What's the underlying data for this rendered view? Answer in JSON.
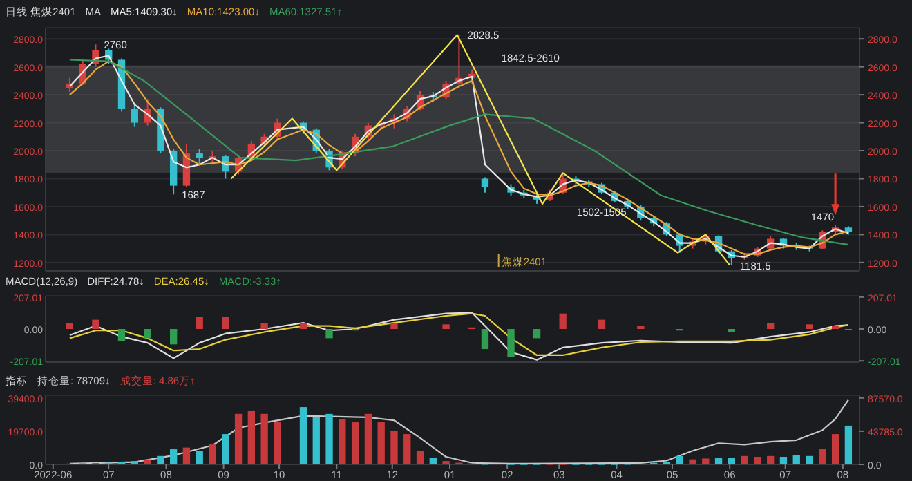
{
  "chart_data": [
    {
      "type": "candlestick",
      "title": "日线  焦煤2401",
      "legend_title": "MA",
      "legend": "top left",
      "grid": "y",
      "tick_labels": "y",
      "xlim": [
        "2022-05-28",
        "2023-08-10"
      ],
      "ylim": [
        1140,
        2880
      ],
      "yticks": [
        {
          "value": 1200,
          "label": "1200.0"
        },
        {
          "value": 1400,
          "label": "1400.0"
        },
        {
          "value": 1600,
          "label": "1600.0"
        },
        {
          "value": 1800,
          "label": "1800.0"
        },
        {
          "value": 2000,
          "label": "2000.0"
        },
        {
          "value": 2200,
          "label": "2200.0"
        },
        {
          "value": 2400,
          "label": "2400.0"
        },
        {
          "value": 2600,
          "label": "2600.0"
        },
        {
          "value": 2800,
          "label": "2800.0"
        }
      ],
      "y2lim": [
        1140,
        2880
      ],
      "y2ticks": [
        {
          "value": 1200,
          "label": "1200.0"
        },
        {
          "value": 1400,
          "label": "1400.0"
        },
        {
          "value": 1600,
          "label": "1600.0"
        },
        {
          "value": 1800,
          "label": "1800.0"
        },
        {
          "value": 2000,
          "label": "2000.0"
        },
        {
          "value": 2200,
          "label": "2200.0"
        },
        {
          "value": 2400,
          "label": "2400.0"
        },
        {
          "value": 2600,
          "label": "2600.0"
        },
        {
          "value": 2800,
          "label": "2800.0"
        }
      ],
      "x": [
        "2022-06-10",
        "2022-06-17",
        "2022-06-24",
        "2022-07-01",
        "2022-07-08",
        "2022-07-15",
        "2022-07-22",
        "2022-07-29",
        "2022-08-05",
        "2022-08-12",
        "2022-08-19",
        "2022-08-26",
        "2022-09-02",
        "2022-09-09",
        "2022-09-16",
        "2022-09-23",
        "2022-09-30",
        "2022-10-14",
        "2022-10-21",
        "2022-10-28",
        "2022-11-04",
        "2022-11-11",
        "2022-11-18",
        "2022-11-25",
        "2022-12-02",
        "2022-12-09",
        "2022-12-16",
        "2022-12-23",
        "2022-12-30",
        "2023-01-06",
        "2023-01-13",
        "2023-01-20",
        "2023-02-03",
        "2023-02-10",
        "2023-02-17",
        "2023-02-24",
        "2023-03-03",
        "2023-03-10",
        "2023-03-17",
        "2023-03-24",
        "2023-03-31",
        "2023-04-07",
        "2023-04-14",
        "2023-04-21",
        "2023-04-28",
        "2023-05-05",
        "2023-05-12",
        "2023-05-19",
        "2023-05-26",
        "2023-06-02",
        "2023-06-09",
        "2023-06-16",
        "2023-06-23",
        "2023-06-30",
        "2023-07-07",
        "2023-07-14",
        "2023-07-21",
        "2023-07-28",
        "2023-08-04"
      ],
      "ohlc": [
        [
          2450,
          2520,
          2420,
          2480
        ],
        [
          2480,
          2650,
          2470,
          2620
        ],
        [
          2620,
          2760,
          2600,
          2720
        ],
        [
          2720,
          2730,
          2620,
          2650
        ],
        [
          2650,
          2660,
          2280,
          2300
        ],
        [
          2300,
          2340,
          2170,
          2200
        ],
        [
          2200,
          2370,
          2180,
          2300
        ],
        [
          2300,
          2310,
          1980,
          2000
        ],
        [
          2000,
          2010,
          1687,
          1750
        ],
        [
          1750,
          2050,
          1740,
          1980
        ],
        [
          1980,
          2010,
          1900,
          1950
        ],
        [
          1950,
          2000,
          1900,
          1960
        ],
        [
          1960,
          1970,
          1800,
          1850
        ],
        [
          1850,
          1970,
          1830,
          1950
        ],
        [
          1950,
          2070,
          1930,
          2050
        ],
        [
          2050,
          2120,
          2030,
          2100
        ],
        [
          2100,
          2230,
          2080,
          2200
        ],
        [
          2200,
          2210,
          2120,
          2150
        ],
        [
          2150,
          2160,
          1980,
          2000
        ],
        [
          2000,
          2010,
          1860,
          1880
        ],
        [
          1880,
          2000,
          1870,
          1980
        ],
        [
          1980,
          2120,
          1960,
          2100
        ],
        [
          2100,
          2200,
          2080,
          2180
        ],
        [
          2180,
          2230,
          2150,
          2200
        ],
        [
          2200,
          2260,
          2160,
          2230
        ],
        [
          2230,
          2320,
          2210,
          2300
        ],
        [
          2300,
          2430,
          2290,
          2400
        ],
        [
          2400,
          2420,
          2350,
          2380
        ],
        [
          2380,
          2500,
          2370,
          2480
        ],
        [
          2480,
          2828.5,
          2450,
          2520
        ],
        [
          2520,
          2580,
          2480,
          2550
        ],
        [
          1800,
          1810,
          1700,
          1740
        ],
        [
          1740,
          1760,
          1680,
          1700
        ],
        [
          1700,
          1720,
          1660,
          1680
        ],
        [
          1680,
          1700,
          1620,
          1650
        ],
        [
          1650,
          1720,
          1640,
          1700
        ],
        [
          1700,
          1840,
          1690,
          1800
        ],
        [
          1800,
          1820,
          1760,
          1780
        ],
        [
          1780,
          1790,
          1740,
          1760
        ],
        [
          1760,
          1770,
          1690,
          1700
        ],
        [
          1700,
          1710,
          1630,
          1640
        ],
        [
          1640,
          1650,
          1580,
          1600
        ],
        [
          1600,
          1610,
          1500,
          1520
        ],
        [
          1520,
          1530,
          1460,
          1480
        ],
        [
          1480,
          1490,
          1390,
          1400
        ],
        [
          1400,
          1410,
          1270,
          1320
        ],
        [
          1320,
          1370,
          1300,
          1350
        ],
        [
          1350,
          1400,
          1330,
          1390
        ],
        [
          1390,
          1395,
          1270,
          1280
        ],
        [
          1280,
          1290,
          1181.5,
          1230
        ],
        [
          1230,
          1270,
          1220,
          1250
        ],
        [
          1250,
          1310,
          1240,
          1300
        ],
        [
          1300,
          1390,
          1290,
          1370
        ],
        [
          1370,
          1375,
          1300,
          1320
        ],
        [
          1320,
          1340,
          1290,
          1310
        ],
        [
          1310,
          1320,
          1280,
          1300
        ],
        [
          1300,
          1430,
          1295,
          1420
        ],
        [
          1420,
          1470,
          1400,
          1450
        ],
        [
          1450,
          1460,
          1400,
          1420
        ]
      ],
      "series": [
        {
          "name": "MA5:1409.30↓",
          "type": "line",
          "color": "#e8e8e8",
          "values": [
            2460,
            2560,
            2660,
            2680,
            2500,
            2330,
            2260,
            2180,
            1920,
            1880,
            1900,
            1950,
            1900,
            1900,
            1980,
            2060,
            2150,
            2170,
            2080,
            1950,
            1940,
            2030,
            2140,
            2190,
            2220,
            2270,
            2370,
            2390,
            2450,
            2500,
            2530,
            1900,
            1720,
            1690,
            1670,
            1680,
            1760,
            1790,
            1770,
            1720,
            1660,
            1610,
            1550,
            1490,
            1420,
            1340,
            1340,
            1370,
            1310,
            1250,
            1240,
            1280,
            1340,
            1330,
            1310,
            1300,
            1390,
            1440,
            1409.3
          ]
        },
        {
          "name": "MA10:1423.00↓",
          "type": "line",
          "color": "#e8a93a",
          "values": [
            2400,
            2480,
            2580,
            2640,
            2600,
            2480,
            2350,
            2250,
            2080,
            1950,
            1900,
            1910,
            1920,
            1900,
            1930,
            1990,
            2080,
            2150,
            2120,
            2040,
            1980,
            1990,
            2070,
            2160,
            2200,
            2240,
            2310,
            2360,
            2410,
            2460,
            2500,
            2250,
            1850,
            1730,
            1690,
            1680,
            1710,
            1750,
            1770,
            1750,
            1700,
            1650,
            1590,
            1530,
            1470,
            1400,
            1370,
            1360,
            1340,
            1300,
            1260,
            1260,
            1290,
            1310,
            1320,
            1310,
            1340,
            1400,
            1423
          ]
        },
        {
          "name": "MA60:1327.51↑",
          "type": "line",
          "color": "#3a9a5e",
          "x": [
            "2022-06-10",
            "2022-07-01",
            "2022-07-20",
            "2022-08-10",
            "2022-09-10",
            "2022-10-10",
            "2022-11-01",
            "2022-12-01",
            "2023-01-01",
            "2023-01-20",
            "2023-02-15",
            "2023-03-20",
            "2023-04-25",
            "2023-05-20",
            "2023-06-15",
            "2023-07-10",
            "2023-08-04"
          ],
          "values": [
            2650,
            2640,
            2500,
            2280,
            1950,
            1930,
            1970,
            2030,
            2180,
            2260,
            2230,
            2000,
            1680,
            1570,
            1470,
            1380,
            1327.51
          ]
        },
        {
          "type": "line",
          "color": "#f2e34a",
          "x": [
            "2022-09-05",
            "2022-10-08",
            "2022-11-01",
            "2023-01-05",
            "2023-02-20",
            "2023-03-03",
            "2023-05-04",
            "2023-05-19",
            "2023-06-01"
          ],
          "values": [
            1800,
            2230,
            1860,
            2828.5,
            1620,
            1840,
            1270,
            1400,
            1181.5
          ]
        }
      ],
      "bands": [
        {
          "axis": "y",
          "from": 1842.5,
          "to": 2610,
          "label": "1842.5-2610",
          "color": "#5a5b60"
        }
      ],
      "annotations": [
        {
          "text": "1502-1505",
          "x": "2023-04-07",
          "y": 1505
        },
        {
          "text": "2760",
          "x": "2022-06-24",
          "y": 2760
        },
        {
          "text": "1687",
          "x": "2022-08-05",
          "y": 1687
        },
        {
          "text": "2828.5",
          "x": "2023-01-06",
          "y": 2828.5
        },
        {
          "text": "1181.5",
          "x": "2023-06-02",
          "y": 1181.5
        },
        {
          "text": "1470",
          "x": "2023-07-28",
          "y": 1470
        },
        "焦煤2401"
      ]
    },
    {
      "type": "line",
      "title": "MACD(12,26,9)",
      "legend": "top left",
      "tick_labels": "y",
      "xlim": [
        "2022-05-28",
        "2023-08-10"
      ],
      "ylim": [
        -215,
        215
      ],
      "yticks": [
        {
          "value": -207.01,
          "label": "-207.01"
        },
        {
          "value": 0,
          "label": "0.00"
        },
        {
          "value": 207.01,
          "label": "207.01"
        }
      ],
      "y2lim": [
        -215,
        215
      ],
      "y2ticks": [
        {
          "value": -207.01,
          "label": "-207.01"
        },
        {
          "value": 0,
          "label": "0.00"
        },
        {
          "value": 207.01,
          "label": "207.01"
        }
      ],
      "x": [
        "2022-06-10",
        "2022-06-24",
        "2022-07-08",
        "2022-07-22",
        "2022-08-05",
        "2022-08-19",
        "2022-09-02",
        "2022-09-23",
        "2022-10-14",
        "2022-10-28",
        "2022-11-11",
        "2022-12-02",
        "2022-12-30",
        "2023-01-13",
        "2023-01-20",
        "2023-02-03",
        "2023-02-17",
        "2023-03-03",
        "2023-03-24",
        "2023-04-14",
        "2023-05-05",
        "2023-06-02",
        "2023-06-23",
        "2023-07-14",
        "2023-07-28",
        "2023-08-04"
      ],
      "series": [
        {
          "name": "DIFF:24.78↓",
          "type": "line",
          "color": "#e0e0e0",
          "values": [
            -40,
            20,
            -50,
            -90,
            -190,
            -90,
            -30,
            0,
            40,
            -10,
            0,
            60,
            100,
            105,
            20,
            -150,
            -200,
            -120,
            -90,
            -75,
            -85,
            -90,
            -50,
            -20,
            20,
            24.78
          ]
        },
        {
          "name": "DEA:26.45↓",
          "type": "line",
          "color": "#e8d03a",
          "values": [
            -60,
            -10,
            -10,
            -60,
            -140,
            -130,
            -70,
            -20,
            20,
            20,
            5,
            40,
            85,
            100,
            85,
            -60,
            -170,
            -170,
            -120,
            -85,
            -80,
            -80,
            -70,
            -35,
            10,
            26.45
          ]
        },
        {
          "name": "MACD:-3.33↑",
          "type": "bar",
          "color": "#2f9e50",
          "colors": [
            "#c8393b",
            "#c8393b",
            "#2f9e50",
            "#2f9e50",
            "#2f9e50",
            "#c8393b",
            "#c8393b",
            "#c8393b",
            "#c8393b",
            "#2f9e50",
            "#2f9e50",
            "#c8393b",
            "#c8393b",
            "#c8393b",
            "#2f9e50",
            "#2f9e50",
            "#2f9e50",
            "#c8393b",
            "#c8393b",
            "#c8393b",
            "#2f9e50",
            "#2f9e50",
            "#c8393b",
            "#c8393b",
            "#c8393b",
            "#2f9e50"
          ],
          "values": [
            40,
            60,
            -80,
            -60,
            -100,
            80,
            80,
            40,
            40,
            -60,
            -10,
            40,
            30,
            10,
            -130,
            -180,
            -60,
            100,
            60,
            20,
            -10,
            -20,
            40,
            30,
            20,
            -3.33
          ]
        }
      ]
    },
    {
      "type": "bar",
      "title": "指标",
      "legend": "top left",
      "xlim": [
        "2022-05-28",
        "2023-08-10"
      ],
      "ylim": [
        0,
        41000
      ],
      "yticks": [
        {
          "value": 0,
          "label": "0.0"
        },
        {
          "value": 19700,
          "label": "19700.0"
        },
        {
          "value": 39400,
          "label": "39400.0"
        }
      ],
      "y2lim": [
        0,
        91000
      ],
      "y2ticks": [
        {
          "value": 0,
          "label": "0.0"
        },
        {
          "value": 43785,
          "label": "43785.0"
        },
        {
          "value": 87570,
          "label": "87570.0"
        }
      ],
      "xticks": [
        {
          "value": "2022-06",
          "label": "2022-06"
        },
        {
          "value": "2022-07",
          "label": "07"
        },
        {
          "value": "2022-08",
          "label": "08"
        },
        {
          "value": "2022-09",
          "label": "09"
        },
        {
          "value": "2022-10",
          "label": "10"
        },
        {
          "value": "2022-11",
          "label": "11"
        },
        {
          "value": "2022-12",
          "label": "12"
        },
        {
          "value": "2023-01",
          "label": "01"
        },
        {
          "value": "2023-02",
          "label": "02"
        },
        {
          "value": "2023-03",
          "label": "03"
        },
        {
          "value": "2023-04",
          "label": "04"
        },
        {
          "value": "2023-05",
          "label": "05"
        },
        {
          "value": "2023-06",
          "label": "06"
        },
        {
          "value": "2023-07",
          "label": "07"
        },
        {
          "value": "2023-08",
          "label": "08"
        }
      ],
      "x": [
        "2022-06-10",
        "2022-06-17",
        "2022-06-24",
        "2022-07-01",
        "2022-07-08",
        "2022-07-15",
        "2022-07-22",
        "2022-07-29",
        "2022-08-05",
        "2022-08-12",
        "2022-08-19",
        "2022-08-26",
        "2022-09-02",
        "2022-09-09",
        "2022-09-16",
        "2022-09-23",
        "2022-09-30",
        "2022-10-14",
        "2022-10-21",
        "2022-10-28",
        "2022-11-04",
        "2022-11-11",
        "2022-11-18",
        "2022-11-25",
        "2022-12-02",
        "2022-12-09",
        "2022-12-16",
        "2022-12-23",
        "2022-12-30",
        "2023-01-06",
        "2023-01-13",
        "2023-01-20",
        "2023-02-03",
        "2023-02-10",
        "2023-02-17",
        "2023-02-24",
        "2023-03-03",
        "2023-03-10",
        "2023-03-17",
        "2023-03-24",
        "2023-03-31",
        "2023-04-07",
        "2023-04-14",
        "2023-04-21",
        "2023-04-28",
        "2023-05-05",
        "2023-05-12",
        "2023-05-19",
        "2023-05-26",
        "2023-06-02",
        "2023-06-09",
        "2023-06-16",
        "2023-06-23",
        "2023-06-30",
        "2023-07-07",
        "2023-07-14",
        "2023-07-21",
        "2023-07-28",
        "2023-08-04"
      ],
      "series": [
        {
          "name": "持仓量: 78709↓",
          "type": "line",
          "axis": "y2",
          "color": "#c8c8c8",
          "x": [
            "2022-06-10",
            "2022-07-15",
            "2022-08-05",
            "2022-08-26",
            "2022-09-09",
            "2022-09-23",
            "2022-10-14",
            "2022-11-18",
            "2022-12-02",
            "2022-12-16",
            "2022-12-30",
            "2023-01-13",
            "2023-02-03",
            "2023-04-14",
            "2023-04-28",
            "2023-05-12",
            "2023-05-26",
            "2023-06-09",
            "2023-06-23",
            "2023-07-07",
            "2023-07-21",
            "2023-07-28",
            "2023-08-04"
          ],
          "values": [
            1000,
            3000,
            12000,
            25000,
            48000,
            55000,
            64000,
            62000,
            58000,
            35000,
            10000,
            2000,
            1000,
            2000,
            5000,
            18000,
            28000,
            26000,
            30000,
            32000,
            45000,
            60000,
            85000
          ]
        },
        {
          "name": "成交量: 4.86万↑",
          "type": "bar",
          "color": "#d0413f",
          "values": [
            500,
            600,
            800,
            1000,
            1500,
            2000,
            3000,
            5000,
            9000,
            10000,
            8000,
            12000,
            18000,
            30000,
            32000,
            30000,
            25000,
            34000,
            28000,
            30000,
            27000,
            25000,
            30000,
            25000,
            20000,
            18000,
            8000,
            4000,
            2000,
            1000,
            600,
            300,
            200,
            200,
            200,
            200,
            200,
            200,
            200,
            200,
            200,
            300,
            500,
            1000,
            1500,
            5000,
            3000,
            3500,
            4000,
            4000,
            5000,
            4500,
            5000,
            4500,
            5500,
            5000,
            9000,
            18000,
            23000
          ],
          "colors": [
            "#c8393b",
            "#c8393b",
            "#c8393b",
            "#35c0cf",
            "#35c0cf",
            "#35c0cf",
            "#c8393b",
            "#35c0cf",
            "#35c0cf",
            "#c8393b",
            "#35c0cf",
            "#c8393b",
            "#35c0cf",
            "#c8393b",
            "#c8393b",
            "#c8393b",
            "#c8393b",
            "#35c0cf",
            "#35c0cf",
            "#35c0cf",
            "#c8393b",
            "#c8393b",
            "#c8393b",
            "#c8393b",
            "#c8393b",
            "#c8393b",
            "#c8393b",
            "#35c0cf",
            "#c8393b",
            "#c8393b",
            "#c8393b",
            "#35c0cf",
            "#35c0cf",
            "#35c0cf",
            "#35c0cf",
            "#c8393b",
            "#c8393b",
            "#35c0cf",
            "#35c0cf",
            "#35c0cf",
            "#35c0cf",
            "#35c0cf",
            "#35c0cf",
            "#35c0cf",
            "#35c0cf",
            "#35c0cf",
            "#c8393b",
            "#c8393b",
            "#35c0cf",
            "#35c0cf",
            "#c8393b",
            "#c8393b",
            "#c8393b",
            "#35c0cf",
            "#35c0cf",
            "#35c0cf",
            "#c8393b",
            "#c8393b",
            "#35c0cf"
          ]
        }
      ]
    }
  ]
}
